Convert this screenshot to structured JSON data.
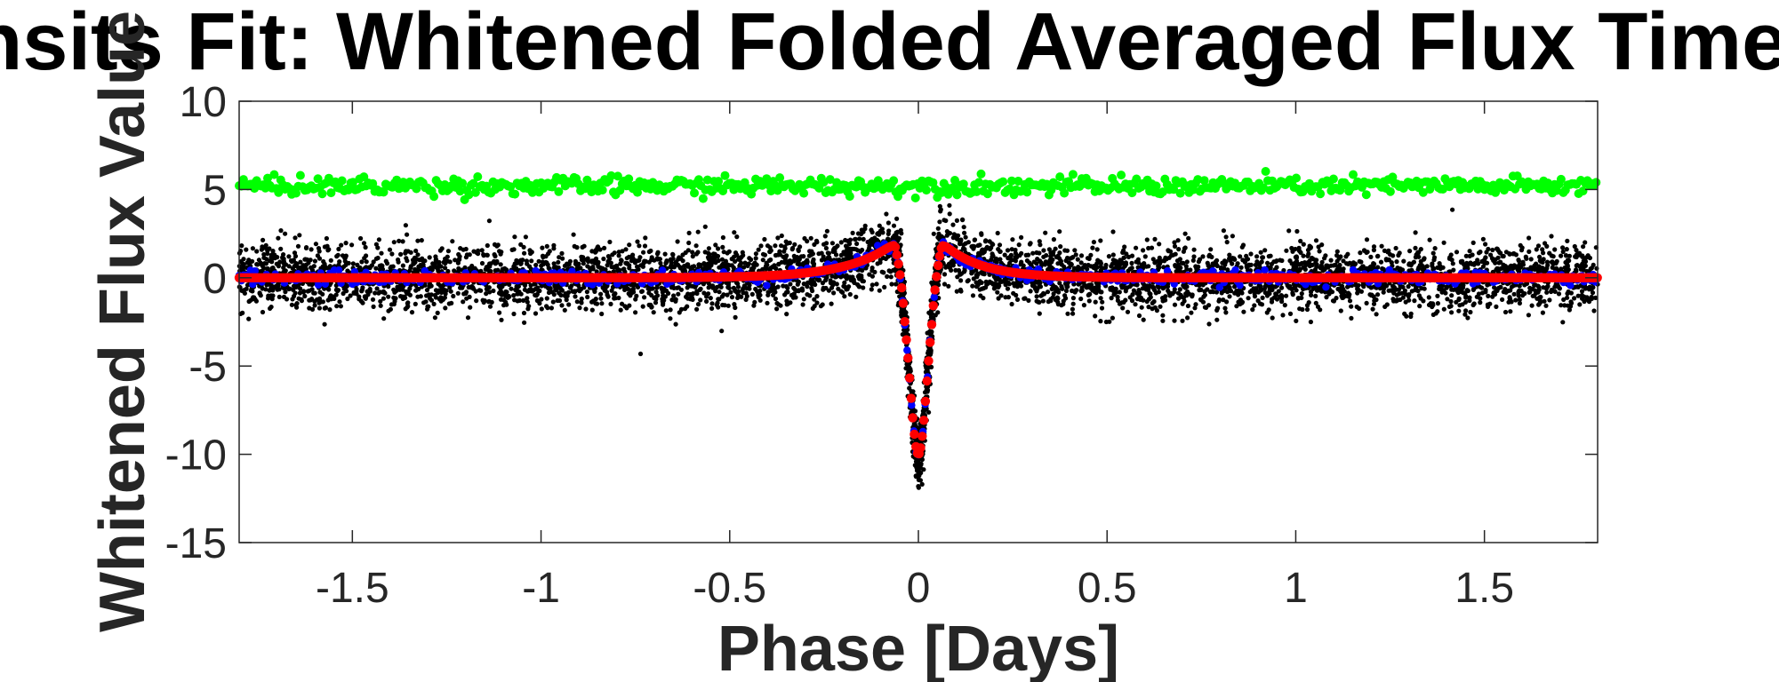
{
  "chart_data": {
    "type": "scatter",
    "title": "All Transits Fit: Whitened Folded Averaged Flux Time Series",
    "xlabel": "Phase [Days]",
    "ylabel": "Whitened Flux Value",
    "xlim": [
      -1.8,
      1.8
    ],
    "ylim": [
      -15,
      10
    ],
    "x_ticks": [
      -1.5,
      -1,
      -0.5,
      0,
      0.5,
      1,
      1.5
    ],
    "x_tick_labels": [
      "-1.5",
      "-1",
      "-0.5",
      "0",
      "0.5",
      "1",
      "1.5"
    ],
    "y_ticks": [
      -15,
      -10,
      -5,
      0,
      5,
      10
    ],
    "y_tick_labels": [
      "-15",
      "-10",
      "-5",
      "0",
      "5",
      "10"
    ],
    "grid": false,
    "transit_model": {
      "center": 0.0,
      "depth": 10.0,
      "core_width": 0.022,
      "bump_height": 2.0,
      "bump_offset": 0.062,
      "bump_decay_in": 0.12,
      "bump_decay_out": 0.1
    },
    "series": [
      {
        "role": "whitened flux samples",
        "color": "#000000",
        "marker": "dot",
        "x_range": [
          -1.8,
          1.8
        ],
        "scatter_sd": 0.9
      },
      {
        "role": "binned flux",
        "color": "#0000ff",
        "marker": "dot",
        "x_range": [
          -1.8,
          1.8
        ]
      },
      {
        "role": "model fit",
        "color": "#ff0000",
        "marker": "circle",
        "x_range": [
          -1.8,
          1.8
        ]
      },
      {
        "role": "residuals offset",
        "color": "#00ff00",
        "marker": "circle",
        "y_offset": 5.2,
        "x_range": [
          -1.8,
          1.8
        ],
        "scatter_sd": 0.25
      }
    ]
  }
}
